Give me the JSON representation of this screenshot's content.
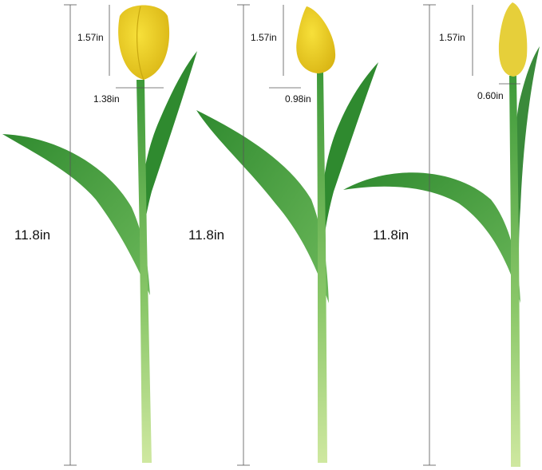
{
  "colors": {
    "petal": "#f2d21c",
    "petal_shade": "#d9b514",
    "leaf": "#3e9a3a",
    "leaf_light": "#7cc46a",
    "stem_base": "#cfe8a0",
    "line": "#555555"
  },
  "tulips": [
    {
      "total_height": "11.8in",
      "bud_height": "1.57in",
      "bud_width": "1.38in"
    },
    {
      "total_height": "11.8in",
      "bud_height": "1.57in",
      "bud_width": "0.98in"
    },
    {
      "total_height": "11.8in",
      "bud_height": "1.57in",
      "bud_width": "0.60in"
    }
  ]
}
